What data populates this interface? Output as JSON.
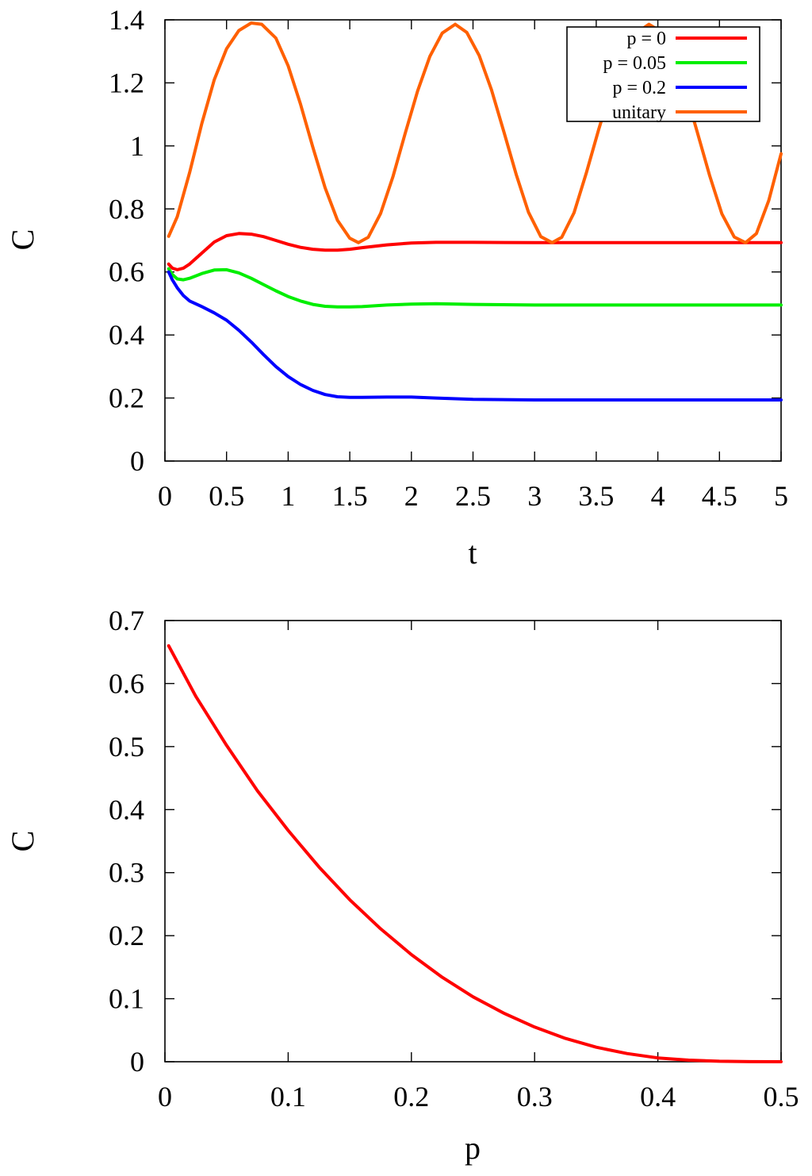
{
  "chart_data": [
    {
      "type": "line",
      "xlabel": "t",
      "ylabel": "C",
      "xlim": [
        0,
        5
      ],
      "ylim": [
        0,
        1.4
      ],
      "xticks": [
        "0",
        "0.5",
        "1",
        "1.5",
        "2",
        "2.5",
        "3",
        "3.5",
        "4",
        "4.5",
        "5"
      ],
      "yticks": [
        "0",
        "0.2",
        "0.4",
        "0.6",
        "0.8",
        "1",
        "1.2",
        "1.4"
      ],
      "grid": false,
      "legend_position": "top-right",
      "series": [
        {
          "name": "p = 0",
          "color": "#ff0000",
          "x": [
            0.03,
            0.06,
            0.1,
            0.15,
            0.2,
            0.3,
            0.4,
            0.5,
            0.6,
            0.7,
            0.8,
            0.9,
            1.0,
            1.1,
            1.2,
            1.3,
            1.4,
            1.5,
            1.6,
            1.8,
            2.0,
            2.2,
            2.5,
            3.0,
            3.5,
            4.0,
            4.5,
            5.0
          ],
          "y": [
            0.625,
            0.612,
            0.607,
            0.612,
            0.625,
            0.66,
            0.695,
            0.715,
            0.722,
            0.72,
            0.712,
            0.7,
            0.688,
            0.678,
            0.672,
            0.669,
            0.669,
            0.672,
            0.677,
            0.686,
            0.692,
            0.694,
            0.694,
            0.693,
            0.693,
            0.693,
            0.693,
            0.693
          ]
        },
        {
          "name": "p = 0.05",
          "color": "#00ee00",
          "x": [
            0.03,
            0.06,
            0.1,
            0.15,
            0.2,
            0.3,
            0.4,
            0.5,
            0.6,
            0.7,
            0.8,
            0.9,
            1.0,
            1.1,
            1.2,
            1.3,
            1.4,
            1.5,
            1.6,
            1.8,
            2.0,
            2.2,
            2.5,
            3.0,
            3.5,
            4.0,
            4.5,
            5.0
          ],
          "y": [
            0.61,
            0.592,
            0.578,
            0.575,
            0.58,
            0.595,
            0.606,
            0.607,
            0.597,
            0.58,
            0.56,
            0.54,
            0.522,
            0.508,
            0.497,
            0.491,
            0.489,
            0.489,
            0.49,
            0.495,
            0.498,
            0.499,
            0.497,
            0.495,
            0.495,
            0.495,
            0.495,
            0.495
          ]
        },
        {
          "name": "p = 0.2",
          "color": "#0000ff",
          "x": [
            0.03,
            0.06,
            0.1,
            0.15,
            0.2,
            0.3,
            0.4,
            0.5,
            0.6,
            0.7,
            0.8,
            0.9,
            1.0,
            1.1,
            1.2,
            1.3,
            1.4,
            1.5,
            1.6,
            1.8,
            2.0,
            2.2,
            2.5,
            3.0,
            3.5,
            4.0,
            4.5,
            5.0
          ],
          "y": [
            0.6,
            0.575,
            0.55,
            0.525,
            0.508,
            0.49,
            0.47,
            0.447,
            0.415,
            0.378,
            0.338,
            0.3,
            0.268,
            0.243,
            0.224,
            0.211,
            0.204,
            0.202,
            0.202,
            0.203,
            0.203,
            0.2,
            0.196,
            0.194,
            0.194,
            0.194,
            0.194,
            0.194
          ]
        },
        {
          "name": "unitary",
          "color": "#ff6000",
          "x": [
            0.03,
            0.1,
            0.2,
            0.3,
            0.4,
            0.5,
            0.6,
            0.7,
            0.785,
            0.9,
            1.0,
            1.1,
            1.2,
            1.3,
            1.4,
            1.5,
            1.571,
            1.65,
            1.75,
            1.85,
            1.95,
            2.05,
            2.15,
            2.25,
            2.356,
            2.45,
            2.55,
            2.65,
            2.75,
            2.85,
            2.95,
            3.05,
            3.142,
            3.22,
            3.32,
            3.42,
            3.52,
            3.62,
            3.72,
            3.82,
            3.927,
            4.02,
            4.12,
            4.22,
            4.32,
            4.42,
            4.52,
            4.62,
            4.712,
            4.8,
            4.9,
            5.0
          ],
          "y": [
            0.713,
            0.775,
            0.915,
            1.072,
            1.21,
            1.308,
            1.366,
            1.39,
            1.386,
            1.342,
            1.254,
            1.133,
            0.996,
            0.867,
            0.764,
            0.707,
            0.693,
            0.71,
            0.785,
            0.902,
            1.04,
            1.174,
            1.284,
            1.358,
            1.386,
            1.36,
            1.287,
            1.178,
            1.045,
            0.91,
            0.79,
            0.712,
            0.693,
            0.71,
            0.788,
            0.915,
            1.052,
            1.18,
            1.286,
            1.357,
            1.386,
            1.364,
            1.293,
            1.18,
            1.044,
            0.906,
            0.784,
            0.711,
            0.693,
            0.722,
            0.827,
            0.975
          ]
        }
      ]
    },
    {
      "type": "line",
      "xlabel": "p",
      "ylabel": "C",
      "xlim": [
        0,
        0.5
      ],
      "ylim": [
        0,
        0.7
      ],
      "xticks": [
        "0",
        "0.1",
        "0.2",
        "0.3",
        "0.4",
        "0.5"
      ],
      "yticks": [
        "0",
        "0.1",
        "0.2",
        "0.3",
        "0.4",
        "0.5",
        "0.6",
        "0.7"
      ],
      "grid": false,
      "series": [
        {
          "color": "#ff0000",
          "x": [
            0.003,
            0.025,
            0.05,
            0.075,
            0.1,
            0.125,
            0.15,
            0.175,
            0.2,
            0.225,
            0.25,
            0.275,
            0.3,
            0.325,
            0.35,
            0.375,
            0.4,
            0.425,
            0.45,
            0.475,
            0.5
          ],
          "y": [
            0.66,
            0.58,
            0.502,
            0.43,
            0.367,
            0.309,
            0.257,
            0.211,
            0.17,
            0.134,
            0.103,
            0.077,
            0.055,
            0.037,
            0.023,
            0.013,
            0.006,
            0.0025,
            0.0007,
            0.0001,
            0.0
          ]
        }
      ]
    }
  ]
}
